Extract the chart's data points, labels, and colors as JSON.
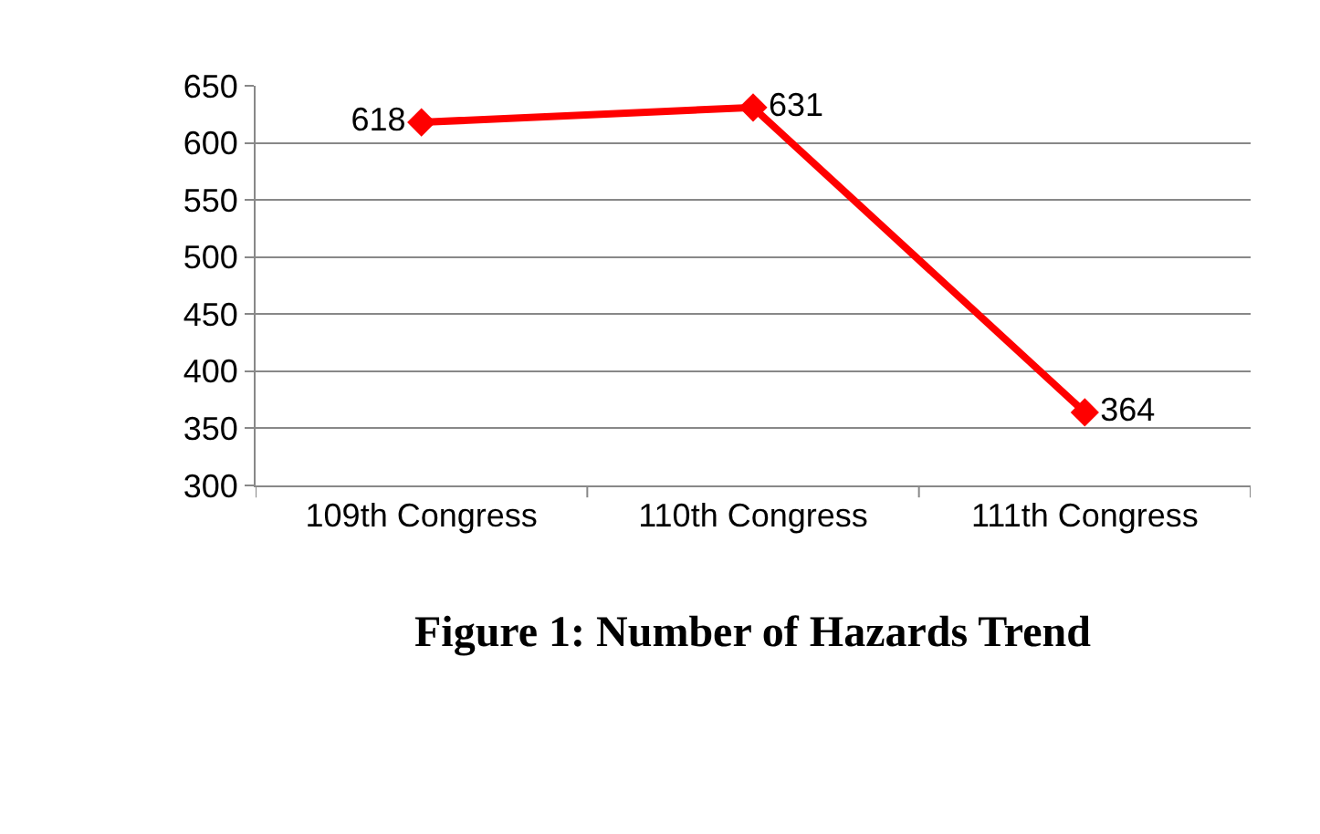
{
  "chart_data": {
    "type": "line",
    "title": "Figure 1: Number of Hazards Trend",
    "categories": [
      "109th Congress",
      "110th Congress",
      "111th Congress"
    ],
    "series": [
      {
        "color": "#ff0000",
        "values": [
          618,
          631,
          364
        ]
      }
    ],
    "ylim": [
      300,
      650
    ],
    "yticks": [
      300,
      350,
      400,
      450,
      500,
      550,
      600,
      650
    ],
    "grid": "y",
    "marker": "diamond",
    "line_style": "solid",
    "data_labels": true
  }
}
